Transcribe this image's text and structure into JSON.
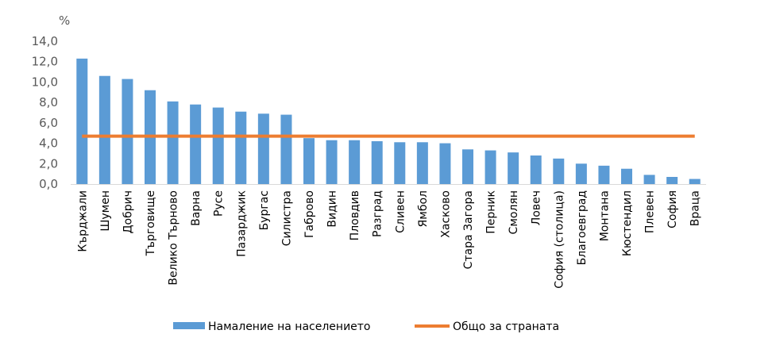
{
  "chart_data": {
    "type": "bar",
    "y_unit": "%",
    "ylim": [
      0,
      14
    ],
    "yticks": [
      "0,0",
      "2,0",
      "4,0",
      "6,0",
      "8,0",
      "10,0",
      "12,0",
      "14,0"
    ],
    "grid": false,
    "legend_position": "bottom",
    "categories": [
      "Кърджали",
      "Шумен",
      "Добрич",
      "Търговище",
      "Велико Търново",
      "Варна",
      "Русе",
      "Пазарджик",
      "Бургас",
      "Силистра",
      "Габрово",
      "Видин",
      "Пловдив",
      "Разград",
      "Сливен",
      "Ямбол",
      "Хасково",
      "Стара Загора",
      "Перник",
      "Смолян",
      "Ловеч",
      "София (столица)",
      "Благоевград",
      "Монтана",
      "Кюстендил",
      "Плевен",
      "София",
      "Враца"
    ],
    "series": [
      {
        "name": "Намаление на населението",
        "type": "bar",
        "color": "#5B9BD5",
        "values": [
          12.3,
          10.6,
          10.3,
          9.2,
          8.1,
          7.8,
          7.5,
          7.1,
          6.9,
          6.8,
          4.5,
          4.3,
          4.3,
          4.2,
          4.1,
          4.1,
          4.0,
          3.4,
          3.3,
          3.1,
          2.8,
          2.5,
          2.0,
          1.8,
          1.5,
          0.9,
          0.7,
          0.5
        ]
      },
      {
        "name": "Общо за страната",
        "type": "line",
        "color": "#ED7D31",
        "value": 4.7
      }
    ]
  }
}
